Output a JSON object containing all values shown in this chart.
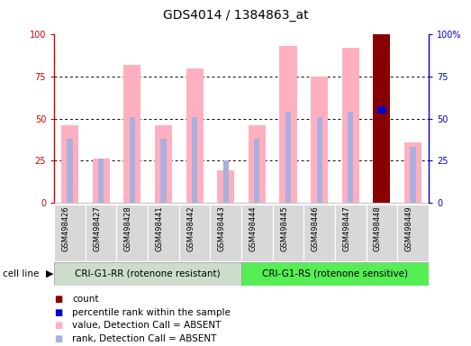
{
  "title": "GDS4014 / 1384863_at",
  "samples": [
    "GSM498426",
    "GSM498427",
    "GSM498428",
    "GSM498441",
    "GSM498442",
    "GSM498443",
    "GSM498444",
    "GSM498445",
    "GSM498446",
    "GSM498447",
    "GSM498448",
    "GSM498449"
  ],
  "pink_bar_heights": [
    46,
    26,
    82,
    46,
    80,
    19,
    46,
    93,
    75,
    92,
    100,
    36
  ],
  "blue_bar_heights": [
    38,
    26,
    51,
    38,
    51,
    25,
    38,
    54,
    51,
    54,
    55,
    33
  ],
  "is_dark_red": [
    false,
    false,
    false,
    false,
    false,
    false,
    false,
    false,
    false,
    false,
    true,
    false
  ],
  "group1_samples": 6,
  "group2_samples": 6,
  "group1_label": "CRI-G1-RR (rotenone resistant)",
  "group2_label": "CRI-G1-RS (rotenone sensitive)",
  "cell_line_label": "cell line",
  "ylim": [
    0,
    100
  ],
  "yticks": [
    0,
    25,
    50,
    75,
    100
  ],
  "axis_left_color": "#cc0000",
  "axis_right_color": "#0000cc",
  "pink_color": "#ffb0c0",
  "blue_color": "#aab0dd",
  "dark_red_color": "#880000",
  "dark_blue_color": "#0000cc",
  "group1_bg": "#ccddcc",
  "group2_bg": "#55ee55",
  "xlab_bg": "#d8d8d8",
  "title_fontsize": 10,
  "tick_fontsize": 7,
  "sample_fontsize": 6,
  "group_fontsize": 7.5,
  "legend_fontsize": 7.5
}
